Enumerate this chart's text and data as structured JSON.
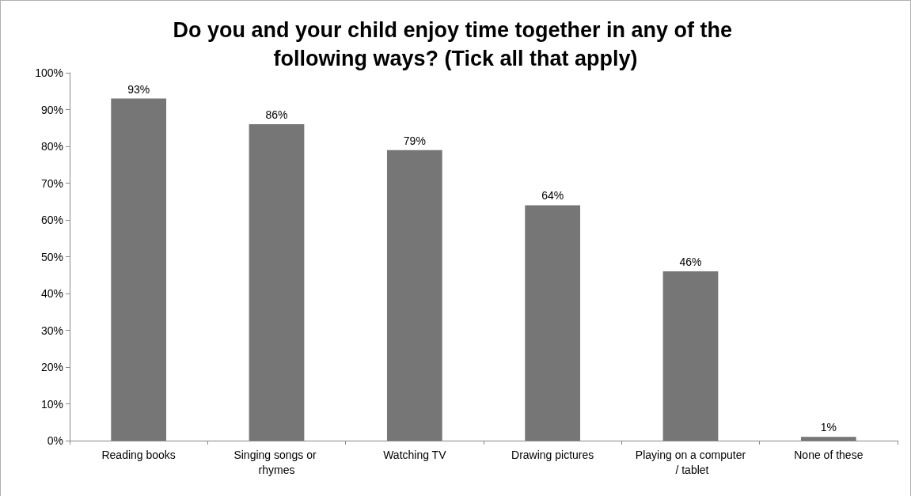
{
  "chart_data": {
    "type": "bar",
    "title": "Do you and your child enjoy time together in any of the following ways? (Tick all that apply)",
    "categories": [
      "Reading books",
      "Singing songs or rhymes",
      "Watching TV",
      "Drawing pictures",
      "Playing on a computer / tablet",
      "None of these"
    ],
    "values": [
      93,
      86,
      79,
      64,
      46,
      1
    ],
    "value_labels": [
      "93%",
      "86%",
      "79%",
      "64%",
      "46%",
      "1%"
    ],
    "color": "#767676",
    "ylim": [
      0,
      100
    ],
    "yticks": [
      {
        "value": 0,
        "label": "0%"
      },
      {
        "value": 10,
        "label": "10%"
      },
      {
        "value": 20,
        "label": "20%"
      },
      {
        "value": 30,
        "label": "30%"
      },
      {
        "value": 40,
        "label": "40%"
      },
      {
        "value": 50,
        "label": "50%"
      },
      {
        "value": 60,
        "label": "60%"
      },
      {
        "value": 70,
        "label": "70%"
      },
      {
        "value": 80,
        "label": "80%"
      },
      {
        "value": 90,
        "label": "90%"
      },
      {
        "value": 100,
        "label": "100%"
      }
    ],
    "grid": false,
    "legend": false
  }
}
